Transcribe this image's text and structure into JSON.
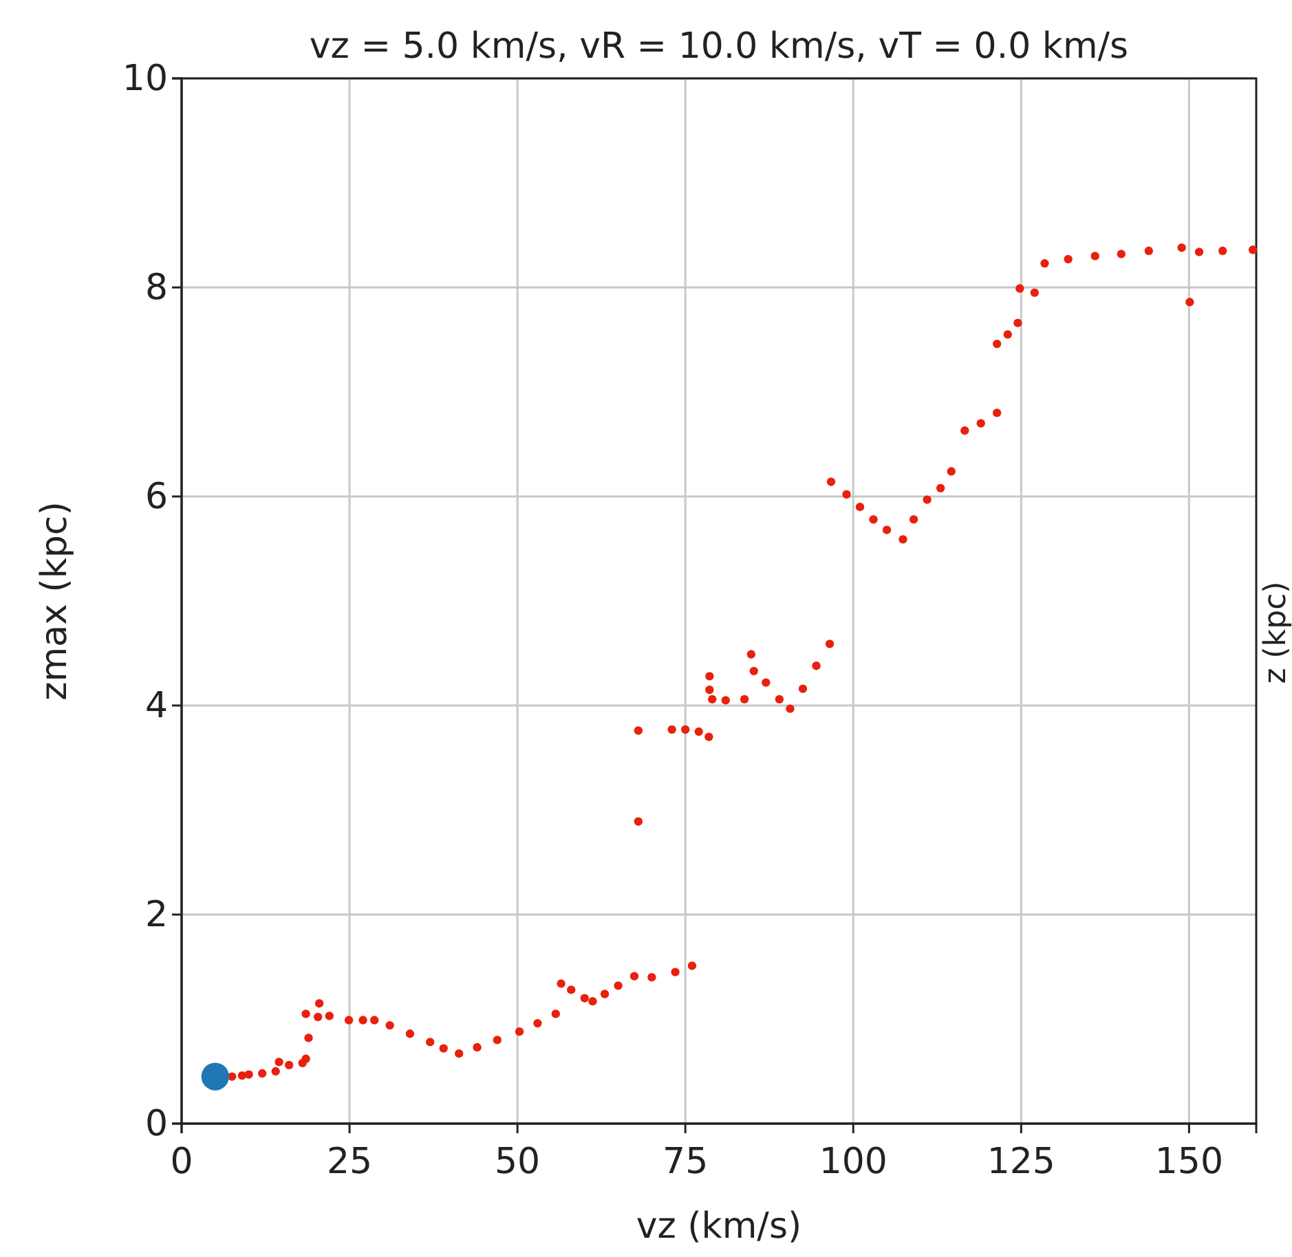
{
  "chart_data": {
    "type": "scatter",
    "title": "vz = 5.0 km/s, vR = 10.0 km/s, vT = 0.0 km/s",
    "xlabel": "vz (km/s)",
    "ylabel": "zmax (kpc)",
    "annotations": [
      "z (kpc)"
    ],
    "xlim": [
      0,
      160
    ],
    "ylim": [
      0,
      10
    ],
    "xticks": [
      0,
      25,
      50,
      75,
      100,
      125,
      150
    ],
    "yticks": [
      0,
      2,
      4,
      6,
      8,
      10
    ],
    "grid": true,
    "marker": "circle",
    "series": [
      {
        "color": "#e8200c",
        "x": [
          7.5,
          9,
          10,
          12,
          14,
          14.5,
          16,
          18,
          18.5,
          18.9,
          18.5,
          20.3,
          20.5,
          22,
          24.9,
          27,
          28.7,
          31,
          34,
          37,
          39,
          41.3,
          44,
          47,
          50.3,
          53,
          55.7,
          56.5,
          58,
          60,
          61.2,
          63,
          65,
          67.4,
          70,
          73.5,
          76,
          68,
          68,
          73,
          75,
          77,
          78.5,
          78.6,
          78.6,
          79,
          81,
          83.8,
          84.8,
          85.2,
          87,
          89,
          90.6,
          92.5,
          94.5,
          96.5,
          96.7,
          99,
          101,
          103,
          105,
          107.4,
          109,
          111,
          113,
          114.6,
          116.6,
          119,
          121.4,
          121.4,
          123,
          124.5,
          124.8,
          127,
          128.5,
          132,
          136,
          139.9,
          144,
          148.9,
          150.1,
          151.5,
          155,
          159.5
        ],
        "values": [
          0.45,
          0.46,
          0.47,
          0.48,
          0.5,
          0.59,
          0.56,
          0.58,
          0.62,
          0.82,
          1.05,
          1.02,
          1.15,
          1.03,
          0.99,
          0.99,
          0.99,
          0.94,
          0.86,
          0.78,
          0.72,
          0.67,
          0.73,
          0.8,
          0.88,
          0.96,
          1.05,
          1.34,
          1.28,
          1.2,
          1.17,
          1.24,
          1.32,
          1.41,
          1.4,
          1.45,
          1.51,
          2.89,
          3.76,
          3.77,
          3.77,
          3.75,
          3.7,
          4.28,
          4.15,
          4.06,
          4.05,
          4.06,
          4.49,
          4.33,
          4.22,
          4.06,
          3.97,
          4.16,
          4.38,
          4.59,
          6.14,
          6.02,
          5.9,
          5.78,
          5.68,
          5.59,
          5.78,
          5.97,
          6.08,
          6.24,
          6.63,
          6.7,
          6.8,
          7.46,
          7.55,
          7.66,
          7.99,
          7.95,
          8.23,
          8.27,
          8.3,
          8.32,
          8.35,
          8.38,
          7.86,
          8.34,
          8.35,
          8.36
        ]
      },
      {
        "color": "#1f77b4",
        "x": [
          5
        ],
        "values": [
          0.45
        ],
        "marker": "circle"
      }
    ]
  }
}
